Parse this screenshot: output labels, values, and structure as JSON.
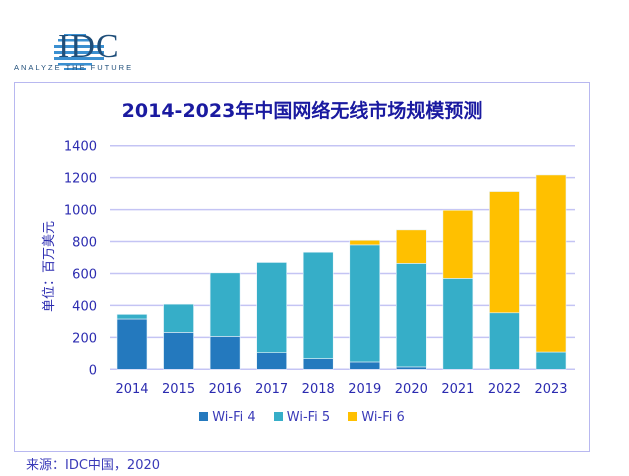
{
  "logo": {
    "name": "IDC",
    "tagline": "ANALYZE THE FUTURE"
  },
  "source": "来源：IDC中国，2020",
  "chart_data": {
    "type": "bar",
    "stacked": true,
    "title": "2014-2023年中国网络无线市场规模预测",
    "ylabel": "单位：百万美元",
    "xlabel": "",
    "ylim": [
      0,
      1400
    ],
    "yticks": [
      0,
      200,
      400,
      600,
      800,
      1000,
      1200,
      1400
    ],
    "grid": true,
    "legend_placement": "bottom",
    "categories": [
      "2014",
      "2015",
      "2016",
      "2017",
      "2018",
      "2019",
      "2020",
      "2021",
      "2022",
      "2023"
    ],
    "series": [
      {
        "name": "Wi-Fi 4",
        "color": "#2479be",
        "values": [
          315,
          231,
          206,
          104,
          67,
          46,
          15,
          0,
          0,
          0
        ]
      },
      {
        "name": "Wi-Fi 5",
        "color": "#36aec8",
        "values": [
          29,
          177,
          398,
          565,
          666,
          733,
          648,
          569,
          354,
          108
        ]
      },
      {
        "name": "Wi-Fi 6",
        "color": "#ffc000",
        "values": [
          0,
          0,
          0,
          0,
          0,
          29,
          210,
          427,
          759,
          1109
        ]
      }
    ]
  }
}
